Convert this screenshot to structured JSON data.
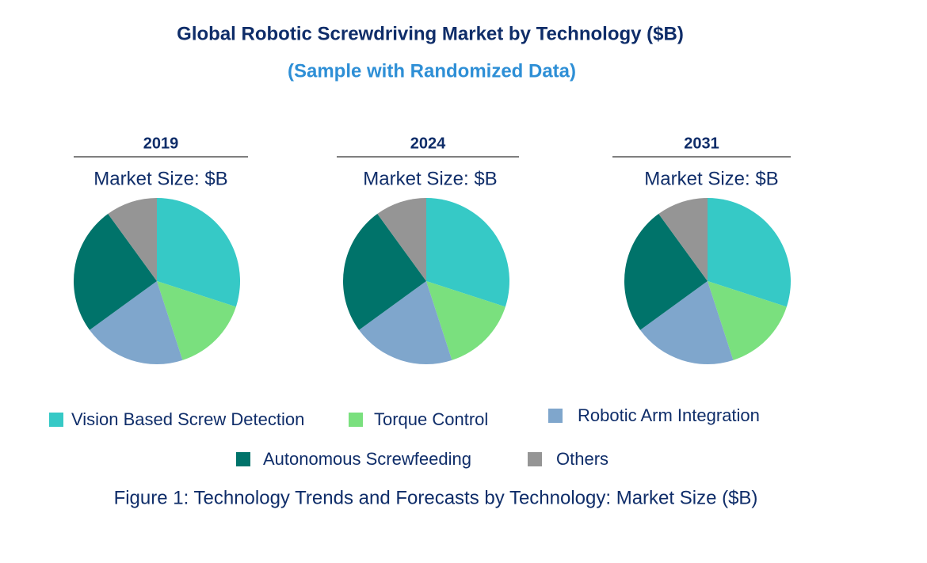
{
  "title": "Global Robotic Screwdriving Market by Technology ($B)",
  "subtitle": "(Sample with Randomized Data)",
  "chart_data": [
    {
      "type": "pie",
      "title": "2019",
      "subtitle": "Market Size: $B",
      "categories": [
        "Vision Based Screw Detection",
        "Torque Control",
        "Robotic Arm Integration",
        "Autonomous Screwfeeding",
        "Others"
      ],
      "values": [
        30,
        15,
        20,
        25,
        10
      ],
      "colors": [
        "#36c9c6",
        "#7ae07e",
        "#7fa6cc",
        "#00736a",
        "#959595"
      ]
    },
    {
      "type": "pie",
      "title": "2024",
      "subtitle": "Market Size: $B",
      "categories": [
        "Vision Based Screw Detection",
        "Torque Control",
        "Robotic Arm Integration",
        "Autonomous Screwfeeding",
        "Others"
      ],
      "values": [
        30,
        15,
        20,
        25,
        10
      ],
      "colors": [
        "#36c9c6",
        "#7ae07e",
        "#7fa6cc",
        "#00736a",
        "#959595"
      ]
    },
    {
      "type": "pie",
      "title": "2031",
      "subtitle": "Market Size: $B",
      "categories": [
        "Vision Based Screw Detection",
        "Torque Control",
        "Robotic Arm Integration",
        "Autonomous Screwfeeding",
        "Others"
      ],
      "values": [
        30,
        15,
        20,
        25,
        10
      ],
      "colors": [
        "#36c9c6",
        "#7ae07e",
        "#7fa6cc",
        "#00736a",
        "#959595"
      ]
    }
  ],
  "caption": "Figure 1: Technology Trends and Forecasts by Technology: Market Size ($B)"
}
